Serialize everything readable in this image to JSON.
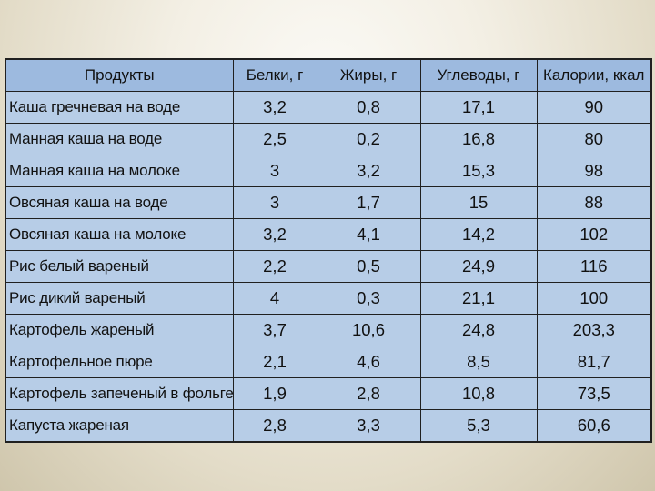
{
  "table": {
    "headers": {
      "product": "Продукты",
      "protein": "Белки, г",
      "fat": "Жиры, г",
      "carbs": "Углеводы, г",
      "calories": "Калории, ккал"
    },
    "rows": [
      {
        "product": "Каша гречневая на воде",
        "protein": "3,2",
        "fat": "0,8",
        "carbs": "17,1",
        "calories": "90"
      },
      {
        "product": "Манная каша на воде",
        "protein": "2,5",
        "fat": "0,2",
        "carbs": "16,8",
        "calories": "80"
      },
      {
        "product": "Манная каша на молоке",
        "protein": "3",
        "fat": "3,2",
        "carbs": "15,3",
        "calories": "98"
      },
      {
        "product": "Овсяная каша на воде",
        "protein": "3",
        "fat": "1,7",
        "carbs": "15",
        "calories": "88"
      },
      {
        "product": "Овсяная каша на молоке",
        "protein": "3,2",
        "fat": "4,1",
        "carbs": "14,2",
        "calories": "102"
      },
      {
        "product": "Рис белый вареный",
        "protein": "2,2",
        "fat": "0,5",
        "carbs": "24,9",
        "calories": "116"
      },
      {
        "product": "Рис дикий вареный",
        "protein": "4",
        "fat": "0,3",
        "carbs": "21,1",
        "calories": "100"
      },
      {
        "product": "Картофель жареный",
        "protein": "3,7",
        "fat": "10,6",
        "carbs": "24,8",
        "calories": "203,3"
      },
      {
        "product": "Картофельное пюре",
        "protein": "2,1",
        "fat": "4,6",
        "carbs": "8,5",
        "calories": "81,7"
      },
      {
        "product": "Картофель запеченый в фольге",
        "protein": "1,9",
        "fat": "2,8",
        "carbs": "10,8",
        "calories": "73,5"
      },
      {
        "product": "Капуста жареная",
        "protein": "2,8",
        "fat": "3,3",
        "carbs": "5,3",
        "calories": "60,6"
      }
    ]
  }
}
